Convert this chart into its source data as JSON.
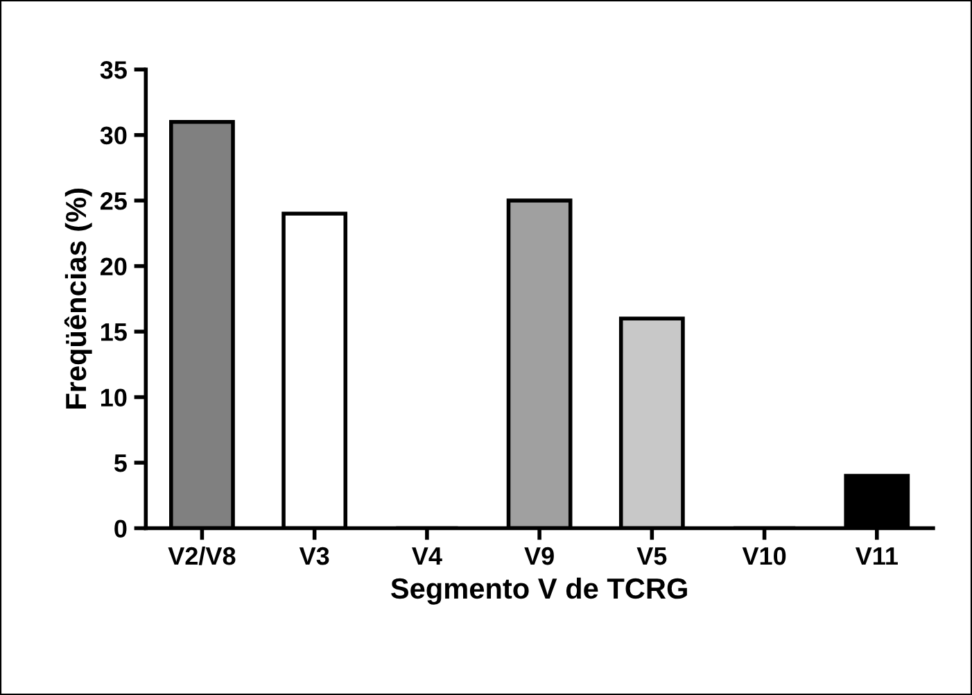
{
  "chart_data": {
    "type": "bar",
    "xlabel": "Segmento V de TCRG",
    "ylabel": "Freqüências (%)",
    "categories": [
      "V2/V8",
      "V3",
      "V4",
      "V9",
      "V5",
      "V10",
      "V11"
    ],
    "values": [
      31,
      24,
      0,
      25,
      16,
      0,
      4
    ],
    "colors": [
      "#808080",
      "#ffffff",
      "#ffffff",
      "#a0a0a0",
      "#c8c8c8",
      "#ffffff",
      "#000000"
    ],
    "ylim": [
      0,
      35
    ],
    "yticks": [
      0,
      5,
      10,
      15,
      20,
      25,
      30,
      35
    ],
    "grid": false,
    "legend": false
  }
}
